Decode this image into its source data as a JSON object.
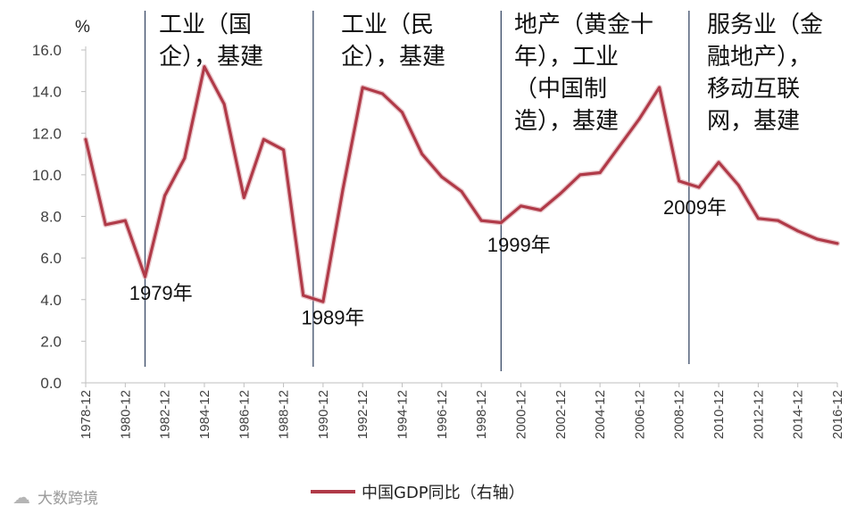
{
  "chart_data": {
    "type": "line",
    "unit_label": "%",
    "ylim": [
      0,
      16
    ],
    "yticks": [
      "0.0",
      "2.0",
      "4.0",
      "6.0",
      "8.0",
      "10.0",
      "12.0",
      "14.0",
      "16.0"
    ],
    "xlim": [
      1978,
      2016
    ],
    "xticks": [
      "1978-12",
      "1980-12",
      "1982-12",
      "1984-12",
      "1986-12",
      "1988-12",
      "1990-12",
      "1992-12",
      "1994-12",
      "1996-12",
      "1998-12",
      "2000-12",
      "2002-12",
      "2004-12",
      "2006-12",
      "2008-12",
      "2010-12",
      "2012-12",
      "2014-12",
      "2016-12"
    ],
    "series": [
      {
        "name": "中国GDP同比（右轴）",
        "color": "#b03a48",
        "points": [
          [
            1978,
            11.7
          ],
          [
            1979,
            7.6
          ],
          [
            1980,
            7.8
          ],
          [
            1981,
            5.1
          ],
          [
            1982,
            9.0
          ],
          [
            1983,
            10.8
          ],
          [
            1984,
            15.2
          ],
          [
            1985,
            13.4
          ],
          [
            1986,
            8.9
          ],
          [
            1987,
            11.7
          ],
          [
            1988,
            11.2
          ],
          [
            1989,
            4.2
          ],
          [
            1990,
            3.9
          ],
          [
            1991,
            9.3
          ],
          [
            1992,
            14.2
          ],
          [
            1993,
            13.9
          ],
          [
            1994,
            13.0
          ],
          [
            1995,
            11.0
          ],
          [
            1996,
            9.9
          ],
          [
            1997,
            9.2
          ],
          [
            1998,
            7.8
          ],
          [
            1999,
            7.7
          ],
          [
            2000,
            8.5
          ],
          [
            2001,
            8.3
          ],
          [
            2002,
            9.1
          ],
          [
            2003,
            10.0
          ],
          [
            2004,
            10.1
          ],
          [
            2005,
            11.4
          ],
          [
            2006,
            12.7
          ],
          [
            2007,
            14.2
          ],
          [
            2008,
            9.7
          ],
          [
            2009,
            9.4
          ],
          [
            2010,
            10.6
          ],
          [
            2011,
            9.5
          ],
          [
            2012,
            7.9
          ],
          [
            2013,
            7.8
          ],
          [
            2014,
            7.3
          ],
          [
            2015,
            6.9
          ],
          [
            2016,
            6.7
          ]
        ]
      }
    ],
    "dividers": [
      1981,
      1989.5,
      1999,
      2008.5
    ],
    "eras": [
      {
        "lines": [
          "工业（国",
          "企），基建"
        ]
      },
      {
        "lines": [
          "工业（民",
          "企），基建"
        ]
      },
      {
        "lines": [
          "地产（黄金十",
          "年），工业",
          "（中国制",
          "造），基建"
        ]
      },
      {
        "lines": [
          "服务业（金",
          "融地产），",
          "移动互联",
          "网，基建"
        ]
      }
    ],
    "annotations": [
      {
        "text": "1979年",
        "x": 1981.8,
        "y": 4.0
      },
      {
        "text": "1989年",
        "x": 1990.5,
        "y": 2.8
      },
      {
        "text": "1999年",
        "x": 1999.9,
        "y": 6.3
      },
      {
        "text": "2009年",
        "x": 2008.8,
        "y": 8.1
      }
    ],
    "legend": {
      "placement": "bottom-center",
      "label": "中国GDP同比（右轴）"
    },
    "watermark": "大数跨境",
    "grid": false
  }
}
